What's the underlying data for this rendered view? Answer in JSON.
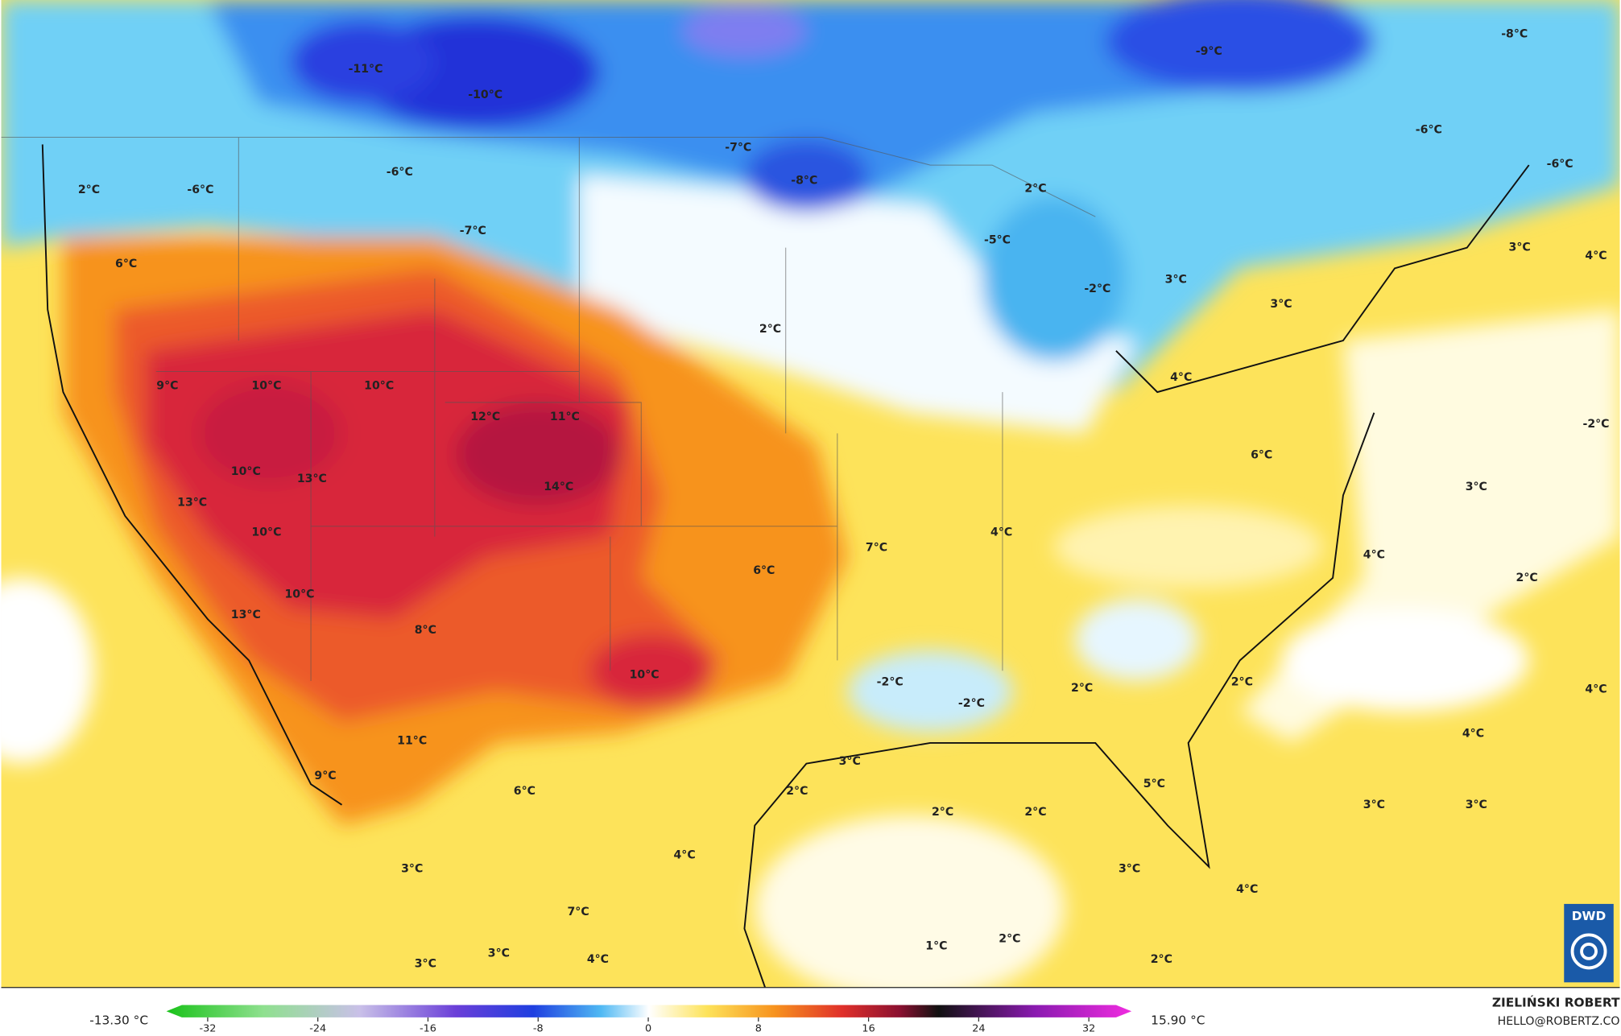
{
  "map": {
    "labels": [
      "-11°C",
      "-10°C",
      "-7°C",
      "-8°C",
      "-6°C",
      "-6°C",
      "-7°C",
      "2°C",
      "-9°C",
      "-8°C",
      "-6°C",
      "-6°C",
      "2°C",
      "-5°C",
      "-2°C",
      "3°C",
      "3°C",
      "4°C",
      "3°C",
      "4°C",
      "6°C",
      "2°C",
      "9°C",
      "10°C",
      "10°C",
      "12°C",
      "11°C",
      "10°C",
      "13°C",
      "14°C",
      "13°C",
      "10°C",
      "10°C",
      "13°C",
      "8°C",
      "6°C",
      "7°C",
      "4°C",
      "6°C",
      "-2°C",
      "3°C",
      "4°C",
      "2°C",
      "10°C",
      "-2°C",
      "-2°C",
      "2°C",
      "2°C",
      "4°C",
      "4°C",
      "11°C",
      "9°C",
      "6°C",
      "3°C",
      "2°C",
      "5°C",
      "2°C",
      "2°C",
      "3°C",
      "3°C",
      "3°C",
      "4°C",
      "3°C",
      "4°C",
      "7°C",
      "3°C",
      "3°C",
      "4°C",
      "1°C",
      "2°C",
      "2°C"
    ]
  },
  "colorbar": {
    "min_label": "-13.30 °C",
    "max_label": "15.90 °C",
    "range": [
      -35,
      35.1
    ],
    "ticks": [
      -32,
      -24,
      -16,
      -8,
      0,
      8,
      16,
      24,
      32
    ]
  },
  "credits": {
    "author": "ZIELIŃSKI ROBERT",
    "contact": "HELLO@ROBERTZ.CO",
    "logo": "DWD"
  }
}
